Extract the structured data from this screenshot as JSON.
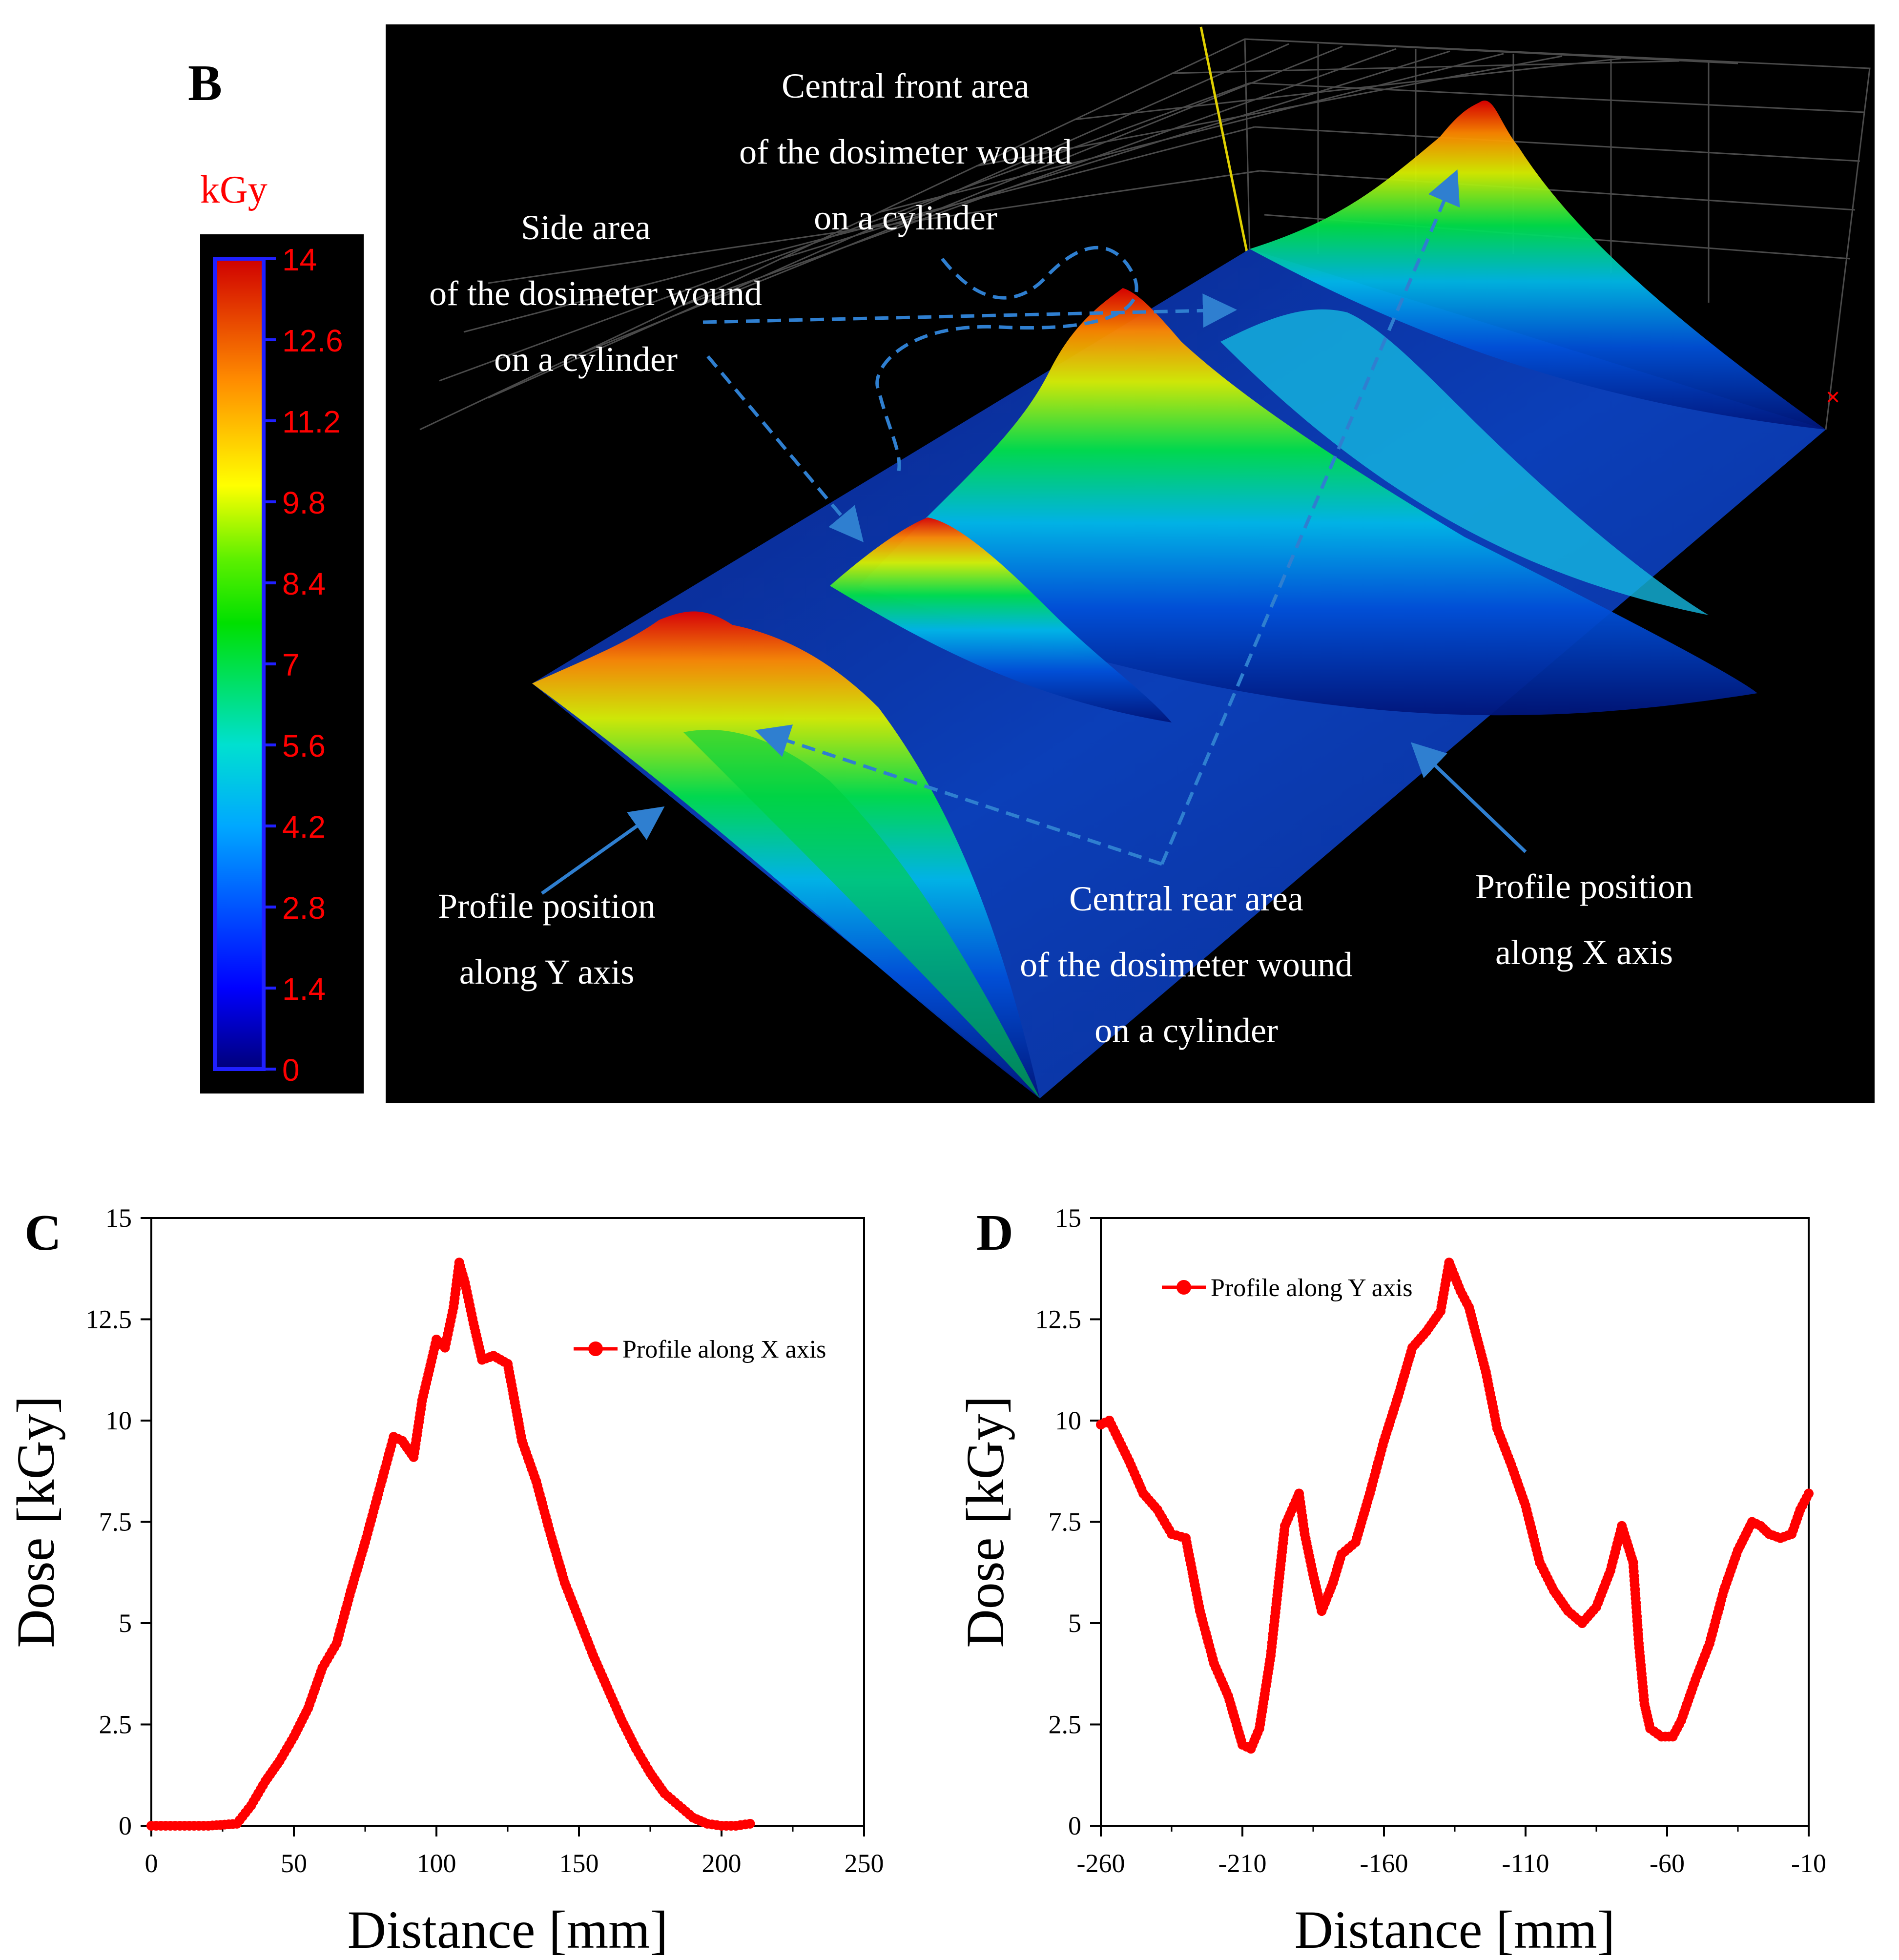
{
  "panel_b": {
    "label": "B",
    "colorbar": {
      "unit": "kGy",
      "ticks": [
        "14",
        "12.6",
        "11.2",
        "9.8",
        "8.4",
        "7",
        "5.6",
        "4.2",
        "2.8",
        "1.4",
        "0"
      ],
      "min": 0,
      "max": 14
    },
    "annotations": {
      "central_front": [
        "Central front area",
        "of the dosimeter wound",
        "on a cylinder"
      ],
      "side": [
        "Side area",
        "of the dosimeter wound",
        "on a cylinder"
      ],
      "profile_y": [
        "Profile position",
        "along Y axis"
      ],
      "central_rear": [
        "Central rear area",
        "of the dosimeter wound",
        "on a cylinder"
      ],
      "profile_x": [
        "Profile position",
        "along X axis"
      ]
    },
    "colors": {
      "background": "#000000",
      "annotation_text": "#ffffff",
      "arrow": "#2f7fd0",
      "colorbar_tick_text": "#ff0000",
      "unit_text": "#ff0000"
    }
  },
  "chart_data": [
    {
      "panel": "C",
      "type": "line",
      "xlabel": "Distance [mm]",
      "ylabel": "Dose [kGy]",
      "xlim": [
        0,
        250
      ],
      "ylim": [
        0,
        15
      ],
      "xticks": [
        "0",
        "50",
        "100",
        "150",
        "200",
        "250"
      ],
      "yticks": [
        "0",
        "2.5",
        "5",
        "7.5",
        "10",
        "12.5",
        "15"
      ],
      "legend_position": "upper-right",
      "color": "#ff0000",
      "series": [
        {
          "name": "Profile along X axis",
          "x": [
            0,
            10,
            20,
            30,
            35,
            40,
            45,
            50,
            55,
            60,
            65,
            70,
            75,
            80,
            85,
            88,
            92,
            95,
            100,
            103,
            106,
            108,
            110,
            113,
            116,
            120,
            125,
            130,
            135,
            140,
            145,
            150,
            155,
            160,
            165,
            170,
            175,
            180,
            185,
            190,
            195,
            200,
            205,
            210
          ],
          "y": [
            0,
            0,
            0,
            0.05,
            0.5,
            1.1,
            1.6,
            2.2,
            2.9,
            3.9,
            4.5,
            5.8,
            7,
            8.3,
            9.6,
            9.5,
            9.1,
            10.5,
            12,
            11.8,
            12.8,
            13.9,
            13.4,
            12.4,
            11.5,
            11.6,
            11.4,
            9.5,
            8.5,
            7.2,
            6,
            5.1,
            4.2,
            3.4,
            2.6,
            1.9,
            1.3,
            0.8,
            0.5,
            0.2,
            0.05,
            0,
            0,
            0.05
          ]
        }
      ]
    },
    {
      "panel": "D",
      "type": "line",
      "xlabel": "Distance [mm]",
      "ylabel": "Dose [kGy]",
      "xlim": [
        -260,
        -10
      ],
      "ylim": [
        0,
        15
      ],
      "xticks": [
        "-260",
        "-210",
        "-160",
        "-110",
        "-60",
        "-10"
      ],
      "yticks": [
        "0",
        "2.5",
        "5",
        "7.5",
        "10",
        "12.5",
        "15"
      ],
      "legend_position": "upper-left",
      "color": "#ff0000",
      "series": [
        {
          "name": "Profile along Y axis",
          "x": [
            -260,
            -257,
            -250,
            -245,
            -240,
            -235,
            -230,
            -225,
            -220,
            -215,
            -210,
            -207,
            -204,
            -200,
            -195,
            -190,
            -188,
            -185,
            -182,
            -178,
            -175,
            -170,
            -165,
            -160,
            -155,
            -150,
            -145,
            -140,
            -137,
            -133,
            -130,
            -127,
            -124,
            -120,
            -115,
            -110,
            -105,
            -100,
            -95,
            -90,
            -85,
            -80,
            -76,
            -72,
            -70,
            -68,
            -66,
            -62,
            -58,
            -55,
            -50,
            -45,
            -40,
            -35,
            -30,
            -27,
            -24,
            -20,
            -16,
            -13,
            -10
          ],
          "y": [
            9.9,
            10,
            9,
            8.2,
            7.8,
            7.2,
            7.1,
            5.3,
            4,
            3.2,
            2,
            1.9,
            2.4,
            4.2,
            7.4,
            8.2,
            7.2,
            6.2,
            5.3,
            6,
            6.7,
            7,
            8.2,
            9.5,
            10.6,
            11.8,
            12.2,
            12.7,
            13.9,
            13.2,
            12.8,
            12,
            11.2,
            9.8,
            8.9,
            7.9,
            6.5,
            5.8,
            5.3,
            5,
            5.4,
            6.3,
            7.4,
            6.5,
            4.5,
            3.0,
            2.4,
            2.2,
            2.2,
            2.6,
            3.6,
            4.5,
            5.8,
            6.8,
            7.5,
            7.4,
            7.2,
            7.1,
            7.2,
            7.8,
            8.2
          ]
        }
      ]
    }
  ]
}
